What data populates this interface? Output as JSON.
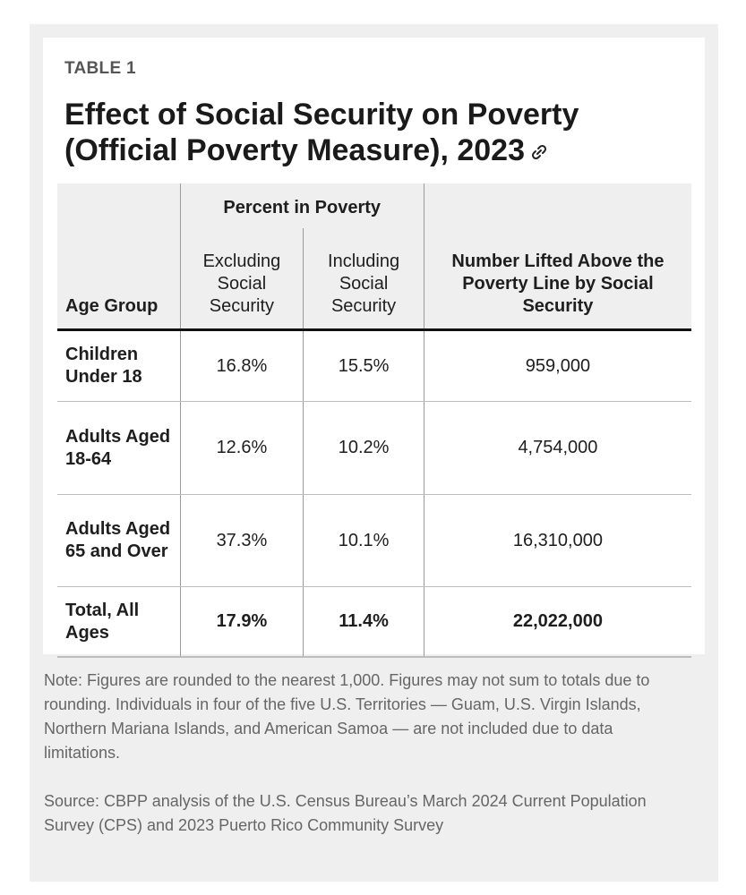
{
  "header": {
    "label": "TABLE 1",
    "title": "Effect of Social Security on Poverty (Official Poverty Measure), 2023"
  },
  "table": {
    "group_header": "Percent in Poverty",
    "columns": [
      "Age Group",
      "Excluding Social Security",
      "Including Social Security",
      "Number Lifted Above the Poverty Line by Social Security"
    ],
    "rows": [
      [
        "Children Under 18",
        "16.8%",
        "15.5%",
        "959,000"
      ],
      [
        "Adults Aged 18-64",
        "12.6%",
        "10.2%",
        "4,754,000"
      ],
      [
        "Adults Aged 65 and Over",
        "37.3%",
        "10.1%",
        "16,310,000"
      ],
      [
        "Total, All Ages",
        "17.9%",
        "11.4%",
        "22,022,000"
      ]
    ]
  },
  "notes": {
    "note": "Note: Figures are rounded to the nearest 1,000. Figures may not sum to totals due to rounding. Individuals in four of the five U.S. Territories — Guam, U.S. Virgin Islands, Northern Mariana Islands, and American Samoa — are not included due to data limitations.",
    "source": "Source: CBPP analysis of the U.S. Census Bureau’s March 2024 Current Population Survey (CPS) and 2023 Puerto Rico Community Survey"
  }
}
